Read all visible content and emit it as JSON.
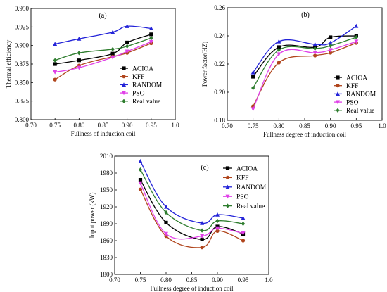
{
  "chart_data": [
    {
      "type": "line",
      "panel_label": "(a)",
      "xlabel": "Fullness of induction coil",
      "ylabel": "Thermal efficiency",
      "xlim": [
        0.7,
        1.0
      ],
      "ylim": [
        0.8,
        0.95
      ],
      "xticks": [
        "0.70",
        "0.75",
        "0.80",
        "0.85",
        "0.90",
        "0.95",
        "1.0"
      ],
      "yticks": [
        "0.800",
        "0.825",
        "0.850",
        "0.875",
        "0.900",
        "0.925",
        "0.950"
      ],
      "x": [
        0.75,
        0.8,
        0.87,
        0.9,
        0.95
      ],
      "legend_position": "bottom-right",
      "series": [
        {
          "name": "ACIOA",
          "color": "#000000",
          "marker": "square",
          "values": [
            0.875,
            0.88,
            0.889,
            0.904,
            0.915
          ]
        },
        {
          "name": "KFF",
          "color": "#b0451c",
          "marker": "circle",
          "values": [
            0.854,
            0.873,
            0.885,
            0.89,
            0.903
          ]
        },
        {
          "name": "RANDOM",
          "color": "#2323d8",
          "marker": "triangle-up",
          "values": [
            0.902,
            0.909,
            0.918,
            0.926,
            0.923
          ]
        },
        {
          "name": "PSO",
          "color": "#e040e8",
          "marker": "triangle-down",
          "values": [
            0.864,
            0.87,
            0.884,
            0.892,
            0.905
          ]
        },
        {
          "name": "Real value",
          "color": "#2e7d2e",
          "marker": "diamond",
          "values": [
            0.88,
            0.89,
            0.895,
            0.899,
            0.91
          ]
        }
      ]
    },
    {
      "type": "line",
      "panel_label": "(b)",
      "xlabel": "Fullness degree of induction coil",
      "ylabel": "Power factor(HZ)",
      "xlim": [
        0.7,
        1.0
      ],
      "ylim": [
        0.18,
        0.26
      ],
      "xticks": [
        "0.70",
        "0.75",
        "0.80",
        "0.85",
        "0.90",
        "0.95",
        "1.0"
      ],
      "yticks": [
        "0.18",
        "0.20",
        "0.22",
        "0.24",
        "0.26"
      ],
      "x": [
        0.75,
        0.8,
        0.87,
        0.9,
        0.95
      ],
      "legend_position": "bottom-right",
      "series": [
        {
          "name": "ACIOA",
          "color": "#000000",
          "marker": "square",
          "values": [
            0.211,
            0.232,
            0.232,
            0.239,
            0.24
          ]
        },
        {
          "name": "KFF",
          "color": "#b0451c",
          "marker": "circle",
          "values": [
            0.19,
            0.221,
            0.226,
            0.228,
            0.235
          ]
        },
        {
          "name": "RANDOM",
          "color": "#2323d8",
          "marker": "triangle-up",
          "values": [
            0.214,
            0.236,
            0.234,
            0.235,
            0.247
          ]
        },
        {
          "name": "PSO",
          "color": "#e040e8",
          "marker": "triangle-down",
          "values": [
            0.188,
            0.227,
            0.228,
            0.23,
            0.236
          ]
        },
        {
          "name": "Real value",
          "color": "#2e7d2e",
          "marker": "diamond",
          "values": [
            0.203,
            0.23,
            0.231,
            0.233,
            0.239
          ]
        }
      ]
    },
    {
      "type": "line",
      "panel_label": "(c)",
      "xlabel": "Fullness degree of induction coil",
      "ylabel": "Input power (kW)",
      "xlim": [
        0.7,
        1.0
      ],
      "ylim": [
        1800,
        2010
      ],
      "xticks": [
        "0.70",
        "0.75",
        "0.80",
        "0.85",
        "0.90",
        "0.95",
        "1.0"
      ],
      "yticks": [
        "1800",
        "1830",
        "1860",
        "1890",
        "1920",
        "1950",
        "1980",
        "2010"
      ],
      "x": [
        0.75,
        0.8,
        0.87,
        0.9,
        0.95
      ],
      "legend_position": "top-right",
      "series": [
        {
          "name": "ACIOA",
          "color": "#000000",
          "marker": "square",
          "values": [
            1968,
            1892,
            1862,
            1885,
            1872
          ]
        },
        {
          "name": "KFF",
          "color": "#b0451c",
          "marker": "circle",
          "values": [
            1951,
            1868,
            1848,
            1877,
            1860
          ]
        },
        {
          "name": "RANDOM",
          "color": "#2323d8",
          "marker": "triangle-up",
          "values": [
            2001,
            1920,
            1891,
            1906,
            1900
          ]
        },
        {
          "name": "PSO",
          "color": "#e040e8",
          "marker": "triangle-down",
          "values": [
            1962,
            1872,
            1868,
            1882,
            1873
          ]
        },
        {
          "name": "Real value",
          "color": "#2e7d2e",
          "marker": "diamond",
          "values": [
            1986,
            1910,
            1878,
            1895,
            1890
          ]
        }
      ]
    }
  ]
}
